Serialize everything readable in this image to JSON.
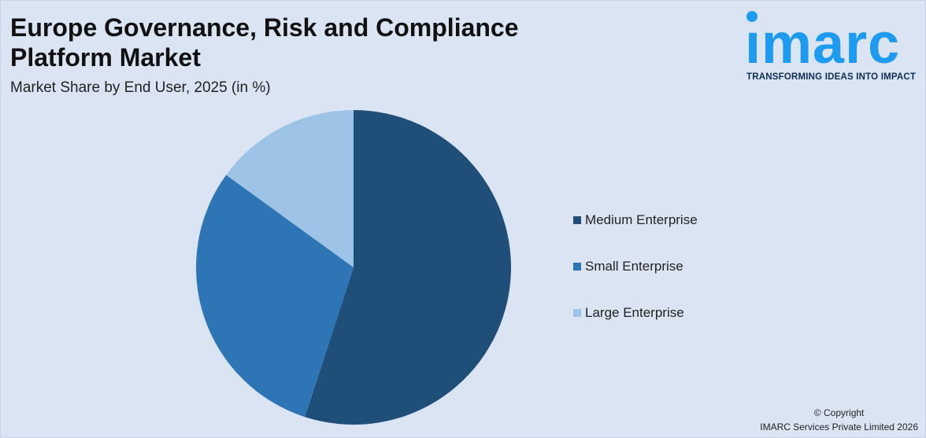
{
  "header": {
    "title": "Europe Governance, Risk and Compliance Platform Market",
    "subtitle": "Market Share by End User, 2025 (in %)"
  },
  "logo": {
    "wordmark": "imarc",
    "tagline": "TRANSFORMING IDEAS INTO IMPACT"
  },
  "chart_data": {
    "type": "pie",
    "title": "Europe Governance, Risk and Compliance Platform Market",
    "subtitle": "Market Share by End User, 2025 (in %)",
    "slices": [
      {
        "label": "Medium Enterprise",
        "value": 55,
        "color": "#1f4e79"
      },
      {
        "label": "Small Enterprise",
        "value": 30,
        "color": "#2e75b6"
      },
      {
        "label": "Large Enterprise",
        "value": 15,
        "color": "#9dc3e6"
      }
    ],
    "legend_position": "right"
  },
  "footer": {
    "copyright_line1": "© Copyright",
    "copyright_line2": "IMARC Services Private Limited 2026"
  }
}
